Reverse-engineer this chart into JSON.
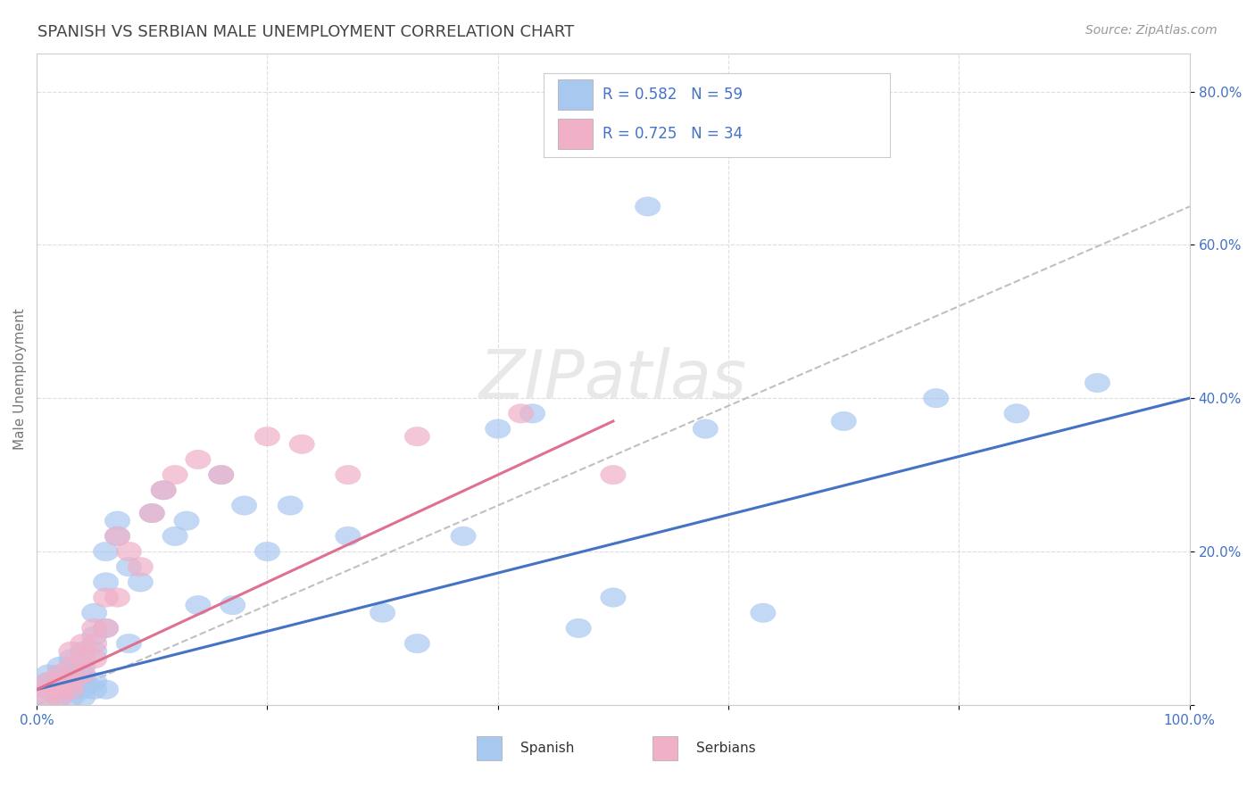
{
  "title": "SPANISH VS SERBIAN MALE UNEMPLOYMENT CORRELATION CHART",
  "source": "Source: ZipAtlas.com",
  "ylabel": "Male Unemployment",
  "xlim": [
    0,
    1.0
  ],
  "ylim": [
    0,
    0.85
  ],
  "x_ticks": [
    0.0,
    0.2,
    0.4,
    0.6,
    0.8,
    1.0
  ],
  "x_tick_labels": [
    "0.0%",
    "",
    "",
    "",
    "",
    "100.0%"
  ],
  "y_ticks": [
    0.0,
    0.2,
    0.4,
    0.6,
    0.8
  ],
  "y_tick_labels": [
    "",
    "20.0%",
    "40.0%",
    "60.0%",
    "80.0%"
  ],
  "spanish_R": 0.582,
  "spanish_N": 59,
  "serbian_R": 0.725,
  "serbian_N": 34,
  "spanish_color": "#a8c8f0",
  "serbian_color": "#f0b0c8",
  "spanish_line_color": "#4472c4",
  "serbian_line_color": "#e07090",
  "trend_line_color": "#c0c0c0",
  "background_color": "#ffffff",
  "grid_color": "#dddddd",
  "title_color": "#444444",
  "legend_text_color": "#4472c4",
  "watermark_color": "#e8e8e8",
  "spanish_x": [
    0.01,
    0.01,
    0.01,
    0.01,
    0.02,
    0.02,
    0.02,
    0.02,
    0.02,
    0.03,
    0.03,
    0.03,
    0.03,
    0.03,
    0.04,
    0.04,
    0.04,
    0.04,
    0.04,
    0.04,
    0.05,
    0.05,
    0.05,
    0.05,
    0.05,
    0.06,
    0.06,
    0.06,
    0.06,
    0.07,
    0.07,
    0.08,
    0.08,
    0.09,
    0.1,
    0.11,
    0.12,
    0.13,
    0.14,
    0.16,
    0.17,
    0.18,
    0.2,
    0.22,
    0.27,
    0.3,
    0.33,
    0.37,
    0.4,
    0.43,
    0.47,
    0.5,
    0.53,
    0.58,
    0.63,
    0.7,
    0.78,
    0.85,
    0.92
  ],
  "spanish_y": [
    0.02,
    0.01,
    0.03,
    0.04,
    0.02,
    0.01,
    0.03,
    0.05,
    0.04,
    0.02,
    0.01,
    0.03,
    0.04,
    0.06,
    0.02,
    0.01,
    0.03,
    0.05,
    0.07,
    0.04,
    0.02,
    0.03,
    0.07,
    0.09,
    0.12,
    0.1,
    0.16,
    0.2,
    0.02,
    0.22,
    0.24,
    0.08,
    0.18,
    0.16,
    0.25,
    0.28,
    0.22,
    0.24,
    0.13,
    0.3,
    0.13,
    0.26,
    0.2,
    0.26,
    0.22,
    0.12,
    0.08,
    0.22,
    0.36,
    0.38,
    0.1,
    0.14,
    0.65,
    0.36,
    0.12,
    0.37,
    0.4,
    0.38,
    0.42
  ],
  "serbian_x": [
    0.01,
    0.01,
    0.01,
    0.02,
    0.02,
    0.02,
    0.02,
    0.03,
    0.03,
    0.03,
    0.03,
    0.04,
    0.04,
    0.04,
    0.05,
    0.05,
    0.05,
    0.06,
    0.06,
    0.07,
    0.07,
    0.08,
    0.09,
    0.1,
    0.11,
    0.12,
    0.14,
    0.16,
    0.2,
    0.23,
    0.27,
    0.33,
    0.42,
    0.5
  ],
  "serbian_y": [
    0.01,
    0.02,
    0.03,
    0.01,
    0.02,
    0.03,
    0.04,
    0.02,
    0.03,
    0.05,
    0.07,
    0.04,
    0.06,
    0.08,
    0.06,
    0.08,
    0.1,
    0.1,
    0.14,
    0.14,
    0.22,
    0.2,
    0.18,
    0.25,
    0.28,
    0.3,
    0.32,
    0.3,
    0.35,
    0.34,
    0.3,
    0.35,
    0.38,
    0.3
  ],
  "sp_line_x0": 0.0,
  "sp_line_y0": 0.02,
  "sp_line_x1": 1.0,
  "sp_line_y1": 0.4,
  "sr_line_x0": 0.0,
  "sr_line_y0": 0.02,
  "sr_line_x1": 0.5,
  "sr_line_y1": 0.37,
  "trend_x0": 0.0,
  "trend_y0": 0.0,
  "trend_x1": 1.0,
  "trend_y1": 0.65
}
